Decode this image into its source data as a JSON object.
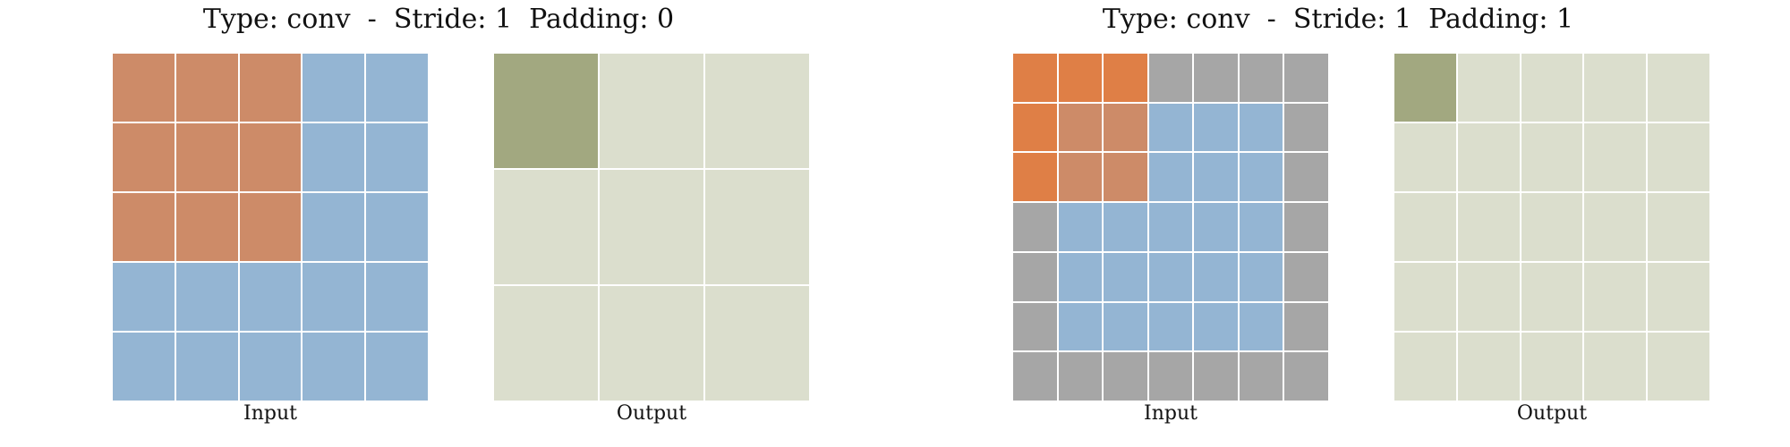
{
  "colors": {
    "input": "#94b5d3",
    "kernel": "#cd8b68",
    "pad": "#a6a6a6",
    "pad_kernel": "#df7f46",
    "output": "#dbdecd",
    "output_active": "#a2a880"
  },
  "panels": [
    {
      "title": "Type: conv  -  Stride: 1  Padding: 0",
      "input_label": "Input",
      "output_label": "Output",
      "input_size": 5,
      "padding": 0,
      "kernel_size": 3,
      "output_size": 3,
      "active_output": [
        0,
        0
      ]
    },
    {
      "title": "Type: conv  -  Stride: 1  Padding: 1",
      "input_label": "Input",
      "output_label": "Output",
      "input_size": 5,
      "padding": 1,
      "kernel_size": 3,
      "output_size": 5,
      "active_output": [
        0,
        0
      ]
    }
  ]
}
